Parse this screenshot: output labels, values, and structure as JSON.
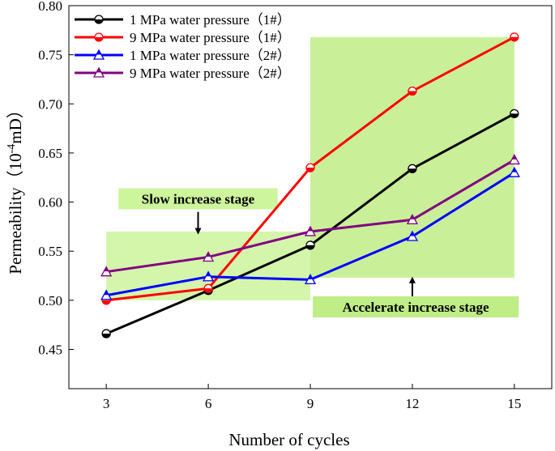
{
  "chart_data": {
    "type": "line",
    "title": "",
    "xlabel": "Number of cycles",
    "ylabel_prefix": "Permeability（10",
    "ylabel_sup": "-4",
    "ylabel_suffix": "mD）",
    "categories": [
      3,
      6,
      9,
      12,
      15
    ],
    "xlim": [
      1.9,
      16.1
    ],
    "ylim": [
      0.41,
      0.8
    ],
    "yticks": [
      0.45,
      0.5,
      0.55,
      0.6,
      0.65,
      0.7,
      0.75,
      0.8
    ],
    "ytick_labels": [
      "0.45",
      "0.50",
      "0.55",
      "0.60",
      "0.65",
      "0.70",
      "0.75",
      "0.80"
    ],
    "xtick_labels": [
      "3",
      "6",
      "9",
      "12",
      "15"
    ],
    "legend_position": "top-left",
    "series": [
      {
        "name": "1 MPa water pressure（1#）",
        "color": "#000000",
        "marker": "circle",
        "values": [
          0.466,
          0.51,
          0.556,
          0.634,
          0.69
        ]
      },
      {
        "name": "9 MPa water pressure（1#）",
        "color": "#ff0000",
        "marker": "circle",
        "values": [
          0.5,
          0.512,
          0.635,
          0.713,
          0.768
        ]
      },
      {
        "name": "1 MPa water pressure（2#）",
        "color": "#0000ff",
        "marker": "triangle",
        "values": [
          0.505,
          0.524,
          0.521,
          0.565,
          0.63
        ]
      },
      {
        "name": "9 MPa water pressure（2#）",
        "color": "#800080",
        "marker": "triangle",
        "values": [
          0.529,
          0.544,
          0.57,
          0.582,
          0.643
        ]
      }
    ],
    "regions": [
      {
        "name": "slow",
        "color": "#cdf59c",
        "x": [
          3,
          9
        ],
        "y": [
          0.5,
          0.57
        ]
      },
      {
        "name": "accelerate",
        "color": "#bfed86",
        "x": [
          9,
          15
        ],
        "y": [
          0.523,
          0.768
        ]
      }
    ],
    "annotations": [
      {
        "text": "Slow increase stage",
        "label_x": 5.7,
        "label_y": 0.6,
        "arrow_from": [
          5.7,
          0.59
        ],
        "arrow_to": [
          5.7,
          0.567
        ],
        "bg": "#cdf59c"
      },
      {
        "text": "Accelerate increase stage",
        "label_x": 12.1,
        "label_y": 0.49,
        "arrow_from": [
          12.0,
          0.504
        ],
        "arrow_to": [
          12.0,
          0.524
        ],
        "bg": "#bfed86"
      }
    ]
  }
}
